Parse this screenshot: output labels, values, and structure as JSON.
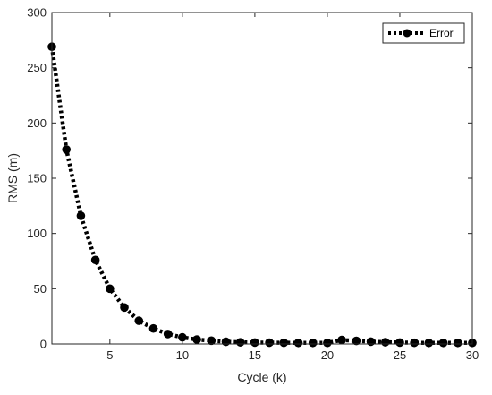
{
  "chart_data": {
    "type": "line",
    "xlabel": "Cycle (k)",
    "ylabel": "RMS (m)",
    "xlim": [
      1,
      30
    ],
    "ylim": [
      0,
      300
    ],
    "xticks": [
      5,
      10,
      15,
      20,
      25,
      30
    ],
    "yticks": [
      0,
      50,
      100,
      150,
      200,
      250,
      300
    ],
    "legend_position": "top-right",
    "grid": false,
    "series": [
      {
        "name": "Error",
        "color": "#000000",
        "line_style": "dotted",
        "marker": "circle",
        "x": [
          1,
          2,
          3,
          4,
          5,
          6,
          7,
          8,
          9,
          10,
          11,
          12,
          13,
          14,
          15,
          16,
          17,
          18,
          19,
          20,
          21,
          22,
          23,
          24,
          25,
          26,
          27,
          28,
          29,
          30
        ],
        "values": [
          269,
          176,
          116,
          76,
          50,
          33,
          21,
          14,
          9,
          6,
          4,
          3,
          2,
          1.5,
          1.3,
          1.2,
          1.1,
          1.0,
          1.0,
          1.0,
          3.6,
          2.8,
          2.1,
          1.6,
          1.3,
          1.1,
          1.0,
          1.0,
          1.0,
          1.0
        ]
      }
    ]
  }
}
